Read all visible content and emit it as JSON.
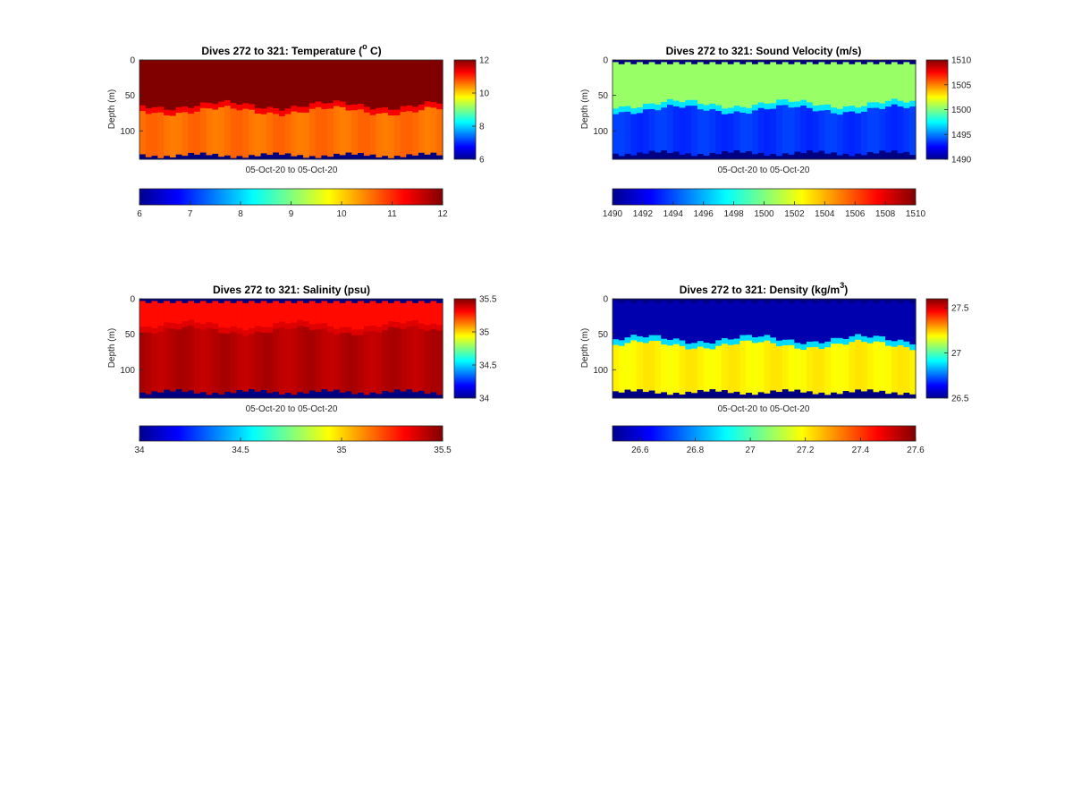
{
  "chart_data": [
    {
      "type": "heatmap",
      "title_main": "Dives 272 to 321: Temperature (",
      "title_sup": "o",
      "title_tail": " C)",
      "xlabel": "05-Oct-20 to 05-Oct-20",
      "ylabel": "Depth (m)",
      "y_ticks": [
        "0",
        "50",
        "100"
      ],
      "y_tick_values": [
        0,
        50,
        100
      ],
      "ylim": [
        0,
        140
      ],
      "dives": [
        272,
        321
      ],
      "colormap": "jet",
      "clim": [
        6,
        12
      ],
      "side_colorbar_ticks": [
        "6",
        "8",
        "10",
        "12"
      ],
      "side_colorbar_values": [
        6,
        8,
        10,
        12
      ],
      "bottom_colorbar_ticks": [
        "6",
        "7",
        "8",
        "9",
        "10",
        "11",
        "12"
      ],
      "bottom_colorbar_values": [
        6,
        7,
        8,
        9,
        10,
        11,
        12
      ],
      "layers": {
        "surface_value": 12,
        "upper_value": 12,
        "lower_value": 10.6,
        "below_bottom_value": 6,
        "thermocline_depth_m": 72,
        "bottom_depth_m": 133
      }
    },
    {
      "type": "heatmap",
      "title_main": "Dives 272 to 321: Sound Velocity (m/s)",
      "title_sup": "",
      "title_tail": "",
      "xlabel": "05-Oct-20 to 05-Oct-20",
      "ylabel": "Depth (m)",
      "y_ticks": [
        "0",
        "50",
        "100"
      ],
      "y_tick_values": [
        0,
        50,
        100
      ],
      "ylim": [
        0,
        140
      ],
      "dives": [
        272,
        321
      ],
      "colormap": "jet",
      "clim": [
        1490,
        1510
      ],
      "side_colorbar_ticks": [
        "1490",
        "1495",
        "1500",
        "1505",
        "1510"
      ],
      "side_colorbar_values": [
        1490,
        1495,
        1500,
        1505,
        1510
      ],
      "bottom_colorbar_ticks": [
        "1490",
        "1492",
        "1494",
        "1496",
        "1498",
        "1500",
        "1502",
        "1504",
        "1506",
        "1508",
        "1510"
      ],
      "bottom_colorbar_values": [
        1490,
        1492,
        1494,
        1496,
        1498,
        1500,
        1502,
        1504,
        1506,
        1508,
        1510
      ],
      "layers": {
        "surface_value": 1490,
        "upper_value": 1500.5,
        "lower_value": 1493.5,
        "below_bottom_value": 1490,
        "thermocline_depth_m": 70,
        "bottom_depth_m": 130
      }
    },
    {
      "type": "heatmap",
      "title_main": "Dives 272 to 321: Salinity (psu)",
      "title_sup": "",
      "title_tail": "",
      "xlabel": "05-Oct-20 to 05-Oct-20",
      "ylabel": "Depth (m)",
      "y_ticks": [
        "0",
        "50",
        "100"
      ],
      "y_tick_values": [
        0,
        50,
        100
      ],
      "ylim": [
        0,
        140
      ],
      "dives": [
        272,
        321
      ],
      "colormap": "jet",
      "clim": [
        34,
        35.5
      ],
      "side_colorbar_ticks": [
        "34",
        "34.5",
        "35",
        "35.5"
      ],
      "side_colorbar_values": [
        34,
        34.5,
        35,
        35.5
      ],
      "bottom_colorbar_ticks": [
        "34",
        "34.5",
        "35",
        "35.5"
      ],
      "bottom_colorbar_values": [
        34,
        34.5,
        35,
        35.5
      ],
      "layers": {
        "surface_value": 34,
        "upper_value": 35.3,
        "lower_value": 35.42,
        "below_bottom_value": 34,
        "thermocline_depth_m": 45,
        "bottom_depth_m": 130
      }
    },
    {
      "type": "heatmap",
      "title_main": "Dives 272 to 321: Density (kg/m",
      "title_sup": "3",
      "title_tail": ")",
      "xlabel": "05-Oct-20 to 05-Oct-20",
      "ylabel": "Depth (m)",
      "y_ticks": [
        "0",
        "50",
        "100"
      ],
      "y_tick_values": [
        0,
        50,
        100
      ],
      "ylim": [
        0,
        140
      ],
      "dives": [
        272,
        321
      ],
      "colormap": "jet",
      "clim": [
        26.5,
        27.6
      ],
      "side_colorbar_ticks": [
        "26.5",
        "27",
        "27.5"
      ],
      "side_colorbar_values": [
        26.5,
        27,
        27.5
      ],
      "bottom_colorbar_ticks": [
        "26.6",
        "26.8",
        "27",
        "27.2",
        "27.4",
        "27.6"
      ],
      "bottom_colorbar_values": [
        26.6,
        26.8,
        27,
        27.2,
        27.4,
        27.6
      ],
      "layers": {
        "surface_value": 26.5,
        "upper_value": 26.55,
        "lower_value": 27.2,
        "below_bottom_value": 26.5,
        "thermocline_depth_m": 65,
        "bottom_depth_m": 130
      }
    }
  ]
}
